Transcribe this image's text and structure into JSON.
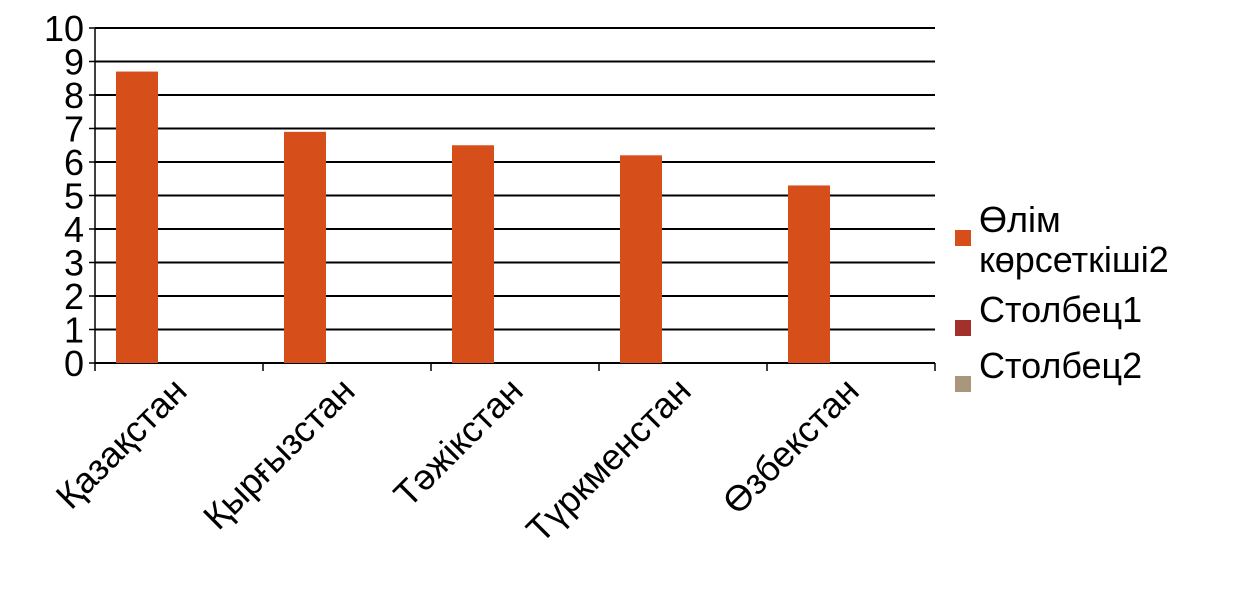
{
  "chart_data": {
    "type": "bar",
    "categories": [
      "Қазақстан",
      "Қырғызстан",
      "Тәжікстан",
      "Түркменстан",
      "Өзбекстан"
    ],
    "series": [
      {
        "name": "Өлім көрсеткіші2",
        "color": "#d64f1b",
        "values": [
          8.7,
          6.9,
          6.5,
          6.2,
          5.3
        ]
      },
      {
        "name": "Столбец1",
        "color": "#a3302a",
        "values": [
          null,
          null,
          null,
          null,
          null
        ]
      },
      {
        "name": "Столбец2",
        "color": "#a8977a",
        "values": [
          null,
          null,
          null,
          null,
          null
        ]
      }
    ],
    "ylim": [
      0,
      10
    ],
    "yticks": [
      0,
      1,
      2,
      3,
      4,
      5,
      6,
      7,
      8,
      9,
      10
    ],
    "grid": true,
    "legend": "right"
  }
}
